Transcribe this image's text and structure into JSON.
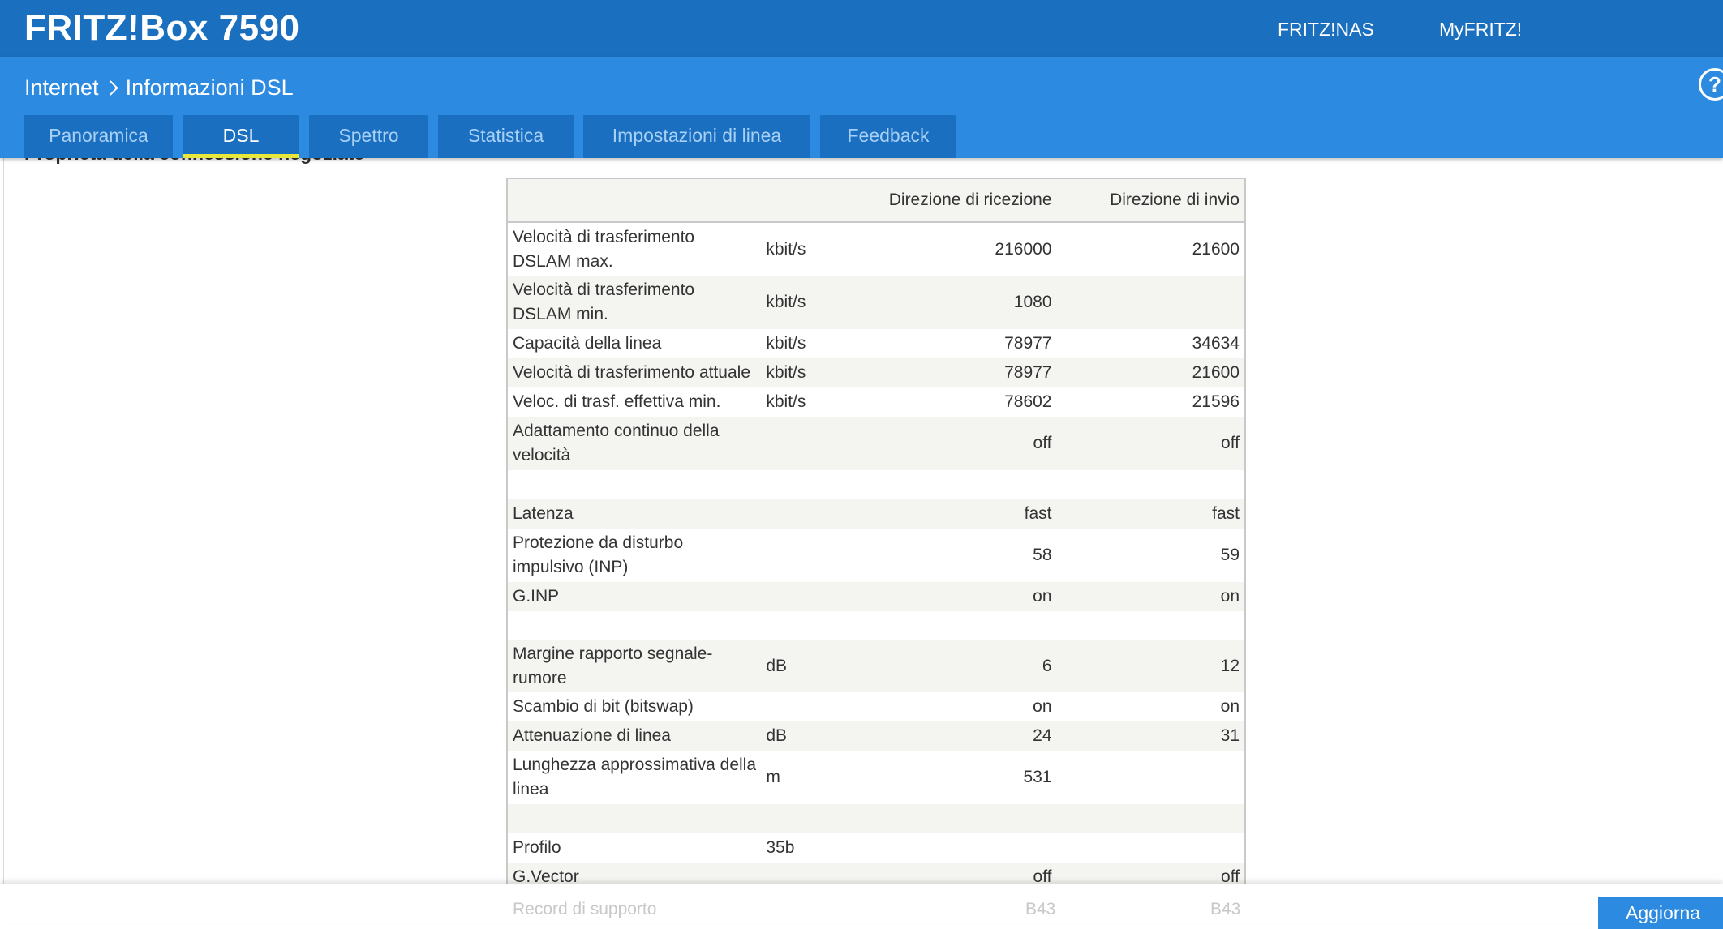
{
  "header": {
    "brand": "FRITZ!Box 7590",
    "links": [
      "FRITZ!NAS",
      "MyFRITZ!"
    ]
  },
  "breadcrumb": {
    "parent": "Internet",
    "current": "Informazioni DSL"
  },
  "help_label": "?",
  "tabs": [
    {
      "label": "Panoramica",
      "active": false
    },
    {
      "label": "DSL",
      "active": true
    },
    {
      "label": "Spettro",
      "active": false
    },
    {
      "label": "Statistica",
      "active": false
    },
    {
      "label": "Impostazioni di linea",
      "active": false
    },
    {
      "label": "Feedback",
      "active": false
    }
  ],
  "section_title": "Proprietà della connessione negoziate",
  "table": {
    "headers": {
      "rx": "Direzione di ricezione",
      "tx": "Direzione di invio"
    },
    "rows": [
      {
        "label": "Velocità di trasferimento DSLAM max.",
        "unit": "kbit/s",
        "rx": "216000",
        "tx": "21600"
      },
      {
        "label": "Velocità di trasferimento DSLAM min.",
        "unit": "kbit/s",
        "rx": "1080",
        "tx": ""
      },
      {
        "label": "Capacità della linea",
        "unit": "kbit/s",
        "rx": "78977",
        "tx": "34634"
      },
      {
        "label": "Velocità di trasferimento attuale",
        "unit": "kbit/s",
        "rx": "78977",
        "tx": "21600"
      },
      {
        "label": "Veloc. di trasf. effettiva min.",
        "unit": "kbit/s",
        "rx": "78602",
        "tx": "21596"
      },
      {
        "label": "Adattamento continuo della velocità",
        "unit": "",
        "rx": "off",
        "tx": "off"
      },
      {
        "label": "",
        "unit": "",
        "rx": "",
        "tx": ""
      },
      {
        "label": "Latenza",
        "unit": "",
        "rx": "fast",
        "tx": "fast"
      },
      {
        "label": "Protezione da disturbo impulsivo (INP)",
        "unit": "",
        "rx": "58",
        "tx": "59"
      },
      {
        "label": "G.INP",
        "unit": "",
        "rx": "on",
        "tx": "on"
      },
      {
        "label": "",
        "unit": "",
        "rx": "",
        "tx": ""
      },
      {
        "label": "Margine rapporto segnale-rumore",
        "unit": "dB",
        "rx": "6",
        "tx": "12"
      },
      {
        "label": "Scambio di bit (bitswap)",
        "unit": "",
        "rx": "on",
        "tx": "on"
      },
      {
        "label": "Attenuazione di linea",
        "unit": "dB",
        "rx": "24",
        "tx": "31"
      },
      {
        "label": "Lunghezza approssimativa della linea",
        "unit": "m",
        "rx": "531",
        "tx": ""
      },
      {
        "label": "",
        "unit": "",
        "rx": "",
        "tx": ""
      },
      {
        "label": "Profilo",
        "unit": "35b",
        "rx": "",
        "tx": ""
      },
      {
        "label": "G.Vector",
        "unit": "",
        "rx": "off",
        "tx": "off"
      }
    ]
  },
  "footer": {
    "faded_label": "Record di supporto",
    "faded_rx": "B43",
    "faded_tx": "B43",
    "update_button": "Aggiorna"
  }
}
